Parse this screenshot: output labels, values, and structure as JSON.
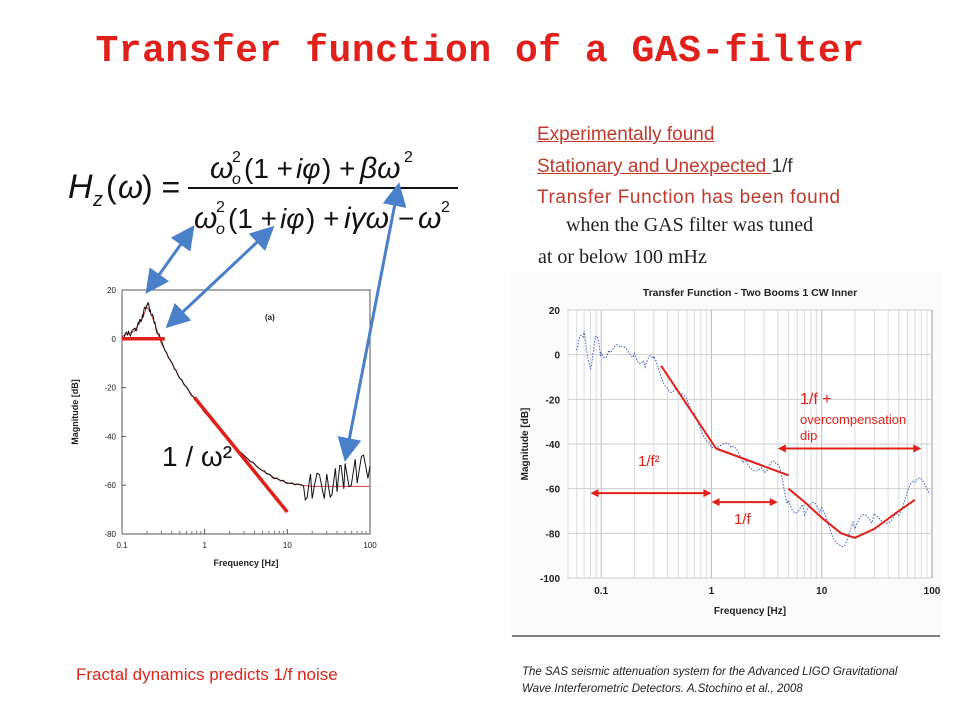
{
  "slide": {
    "title": "Transfer function of a GAS-filter",
    "right_text": {
      "line1": "Experimentally found",
      "line2_underlined": "Stationary and Unexpected ",
      "line2_rest": "1/f",
      "line3": "Transfer Function has been found",
      "line4": "when the GAS filter was tuned",
      "line5": "at or below 100 mHz"
    },
    "caption_left": "Fractal dynamics predicts 1/f noise",
    "caption_right": "The SAS seismic attenuation system for the Advanced LIGO Gravitational Wave Interferometric Detectors. A.Stochino et al., 2008",
    "formula_annotation": "1 / ω²",
    "colors": {
      "title": "#e0211b",
      "annotation_red": "#e0211b",
      "arrow_blue": "#4a7fc9",
      "trace_blue": "#1f3fbf"
    }
  },
  "chart_data": [
    {
      "type": "line",
      "panel_label": "(a)",
      "xlabel": "Frequency [Hz]",
      "ylabel": "Magnitude [dB]",
      "xscale": "log",
      "xlim": [
        0.1,
        100
      ],
      "ylim": [
        -80,
        20
      ],
      "x_ticks": [
        "0.1",
        "1",
        "10",
        "100"
      ],
      "y_ticks": [
        "20",
        "0",
        "-20",
        "-40",
        "-60",
        "-80"
      ],
      "grid": false,
      "measured_x": [
        0.1,
        0.12,
        0.14,
        0.16,
        0.18,
        0.2,
        0.22,
        0.25,
        0.3,
        0.4,
        0.5,
        0.7,
        1,
        1.5,
        2,
        3,
        5,
        7,
        10,
        15,
        20,
        30,
        40,
        50,
        70,
        100
      ],
      "measured_y": [
        1,
        2,
        3,
        6,
        10,
        15,
        12,
        6,
        -2,
        -10,
        -16,
        -23,
        -30,
        -37,
        -42,
        -48,
        -54,
        -57,
        -59,
        -60,
        -61,
        -60,
        -58,
        -56,
        -54,
        -52
      ],
      "model_x": [
        0.1,
        0.14,
        0.18,
        0.2,
        0.22,
        0.25,
        0.3,
        0.4,
        0.5,
        0.7,
        1,
        1.5,
        2,
        3,
        5,
        7,
        10,
        15,
        20,
        30,
        40,
        50,
        70,
        100
      ],
      "model_y": [
        1,
        3,
        9,
        13,
        11,
        6,
        -2,
        -10,
        -16,
        -23,
        -30,
        -37,
        -42,
        -48,
        -54,
        -57,
        -59,
        -60,
        -60.5,
        -60.5,
        -60.5,
        -60.5,
        -60.5,
        -60.5
      ],
      "fit_lines": [
        {
          "name": "flat",
          "x": [
            0.1,
            0.33
          ],
          "y": [
            0,
            0
          ]
        },
        {
          "name": "1/ω²",
          "x": [
            0.75,
            10
          ],
          "y": [
            -24,
            -71
          ]
        }
      ]
    },
    {
      "type": "line",
      "title": "Transfer Function - Two Booms 1 CW Inner",
      "xlabel": "Frequency [Hz]",
      "ylabel": "Magnitude [dB]",
      "xscale": "log",
      "xlim": [
        0.05,
        100
      ],
      "ylim": [
        -100,
        20
      ],
      "x_ticks": [
        "0.1",
        "1",
        "10",
        "100"
      ],
      "y_ticks": [
        "20",
        "0",
        "-20",
        "-40",
        "-60",
        "-80",
        "-100"
      ],
      "grid": true,
      "measured_x": [
        0.06,
        0.07,
        0.08,
        0.09,
        0.1,
        0.12,
        0.15,
        0.2,
        0.25,
        0.3,
        0.4,
        0.5,
        0.7,
        1,
        1.5,
        2,
        3,
        4,
        5,
        7,
        10,
        15,
        20,
        30,
        50,
        70,
        100
      ],
      "measured_y": [
        2,
        8,
        -3,
        6,
        0,
        4,
        0,
        2,
        -4,
        -4,
        -12,
        -18,
        -28,
        -38,
        -44,
        -47,
        -50,
        -55,
        -62,
        -70,
        -74,
        -80,
        -80,
        -74,
        -66,
        -62,
        -58
      ],
      "fit_lines": [
        {
          "name": "1/f²",
          "x": [
            0.35,
            1.1
          ],
          "y": [
            -5,
            -42
          ]
        },
        {
          "name": "1/f",
          "x": [
            1.1,
            5
          ],
          "y": [
            -42,
            -54
          ]
        },
        {
          "name": "1/f + overcompensation dip",
          "x": [
            5,
            7,
            10,
            15,
            20,
            30,
            50,
            70
          ],
          "y": [
            -60,
            -66,
            -73,
            -80,
            -82,
            -78,
            -70,
            -65
          ]
        }
      ],
      "ranges": [
        {
          "label": "1/f²",
          "x": [
            0.08,
            1
          ]
        },
        {
          "label": "1/f",
          "x": [
            1,
            4
          ]
        },
        {
          "label": "1/f + overcompensation dip",
          "x": [
            4,
            80
          ]
        }
      ],
      "annotations": [
        "1/f²",
        "1/f",
        "1/f +",
        "overcompensation",
        "dip"
      ]
    }
  ]
}
